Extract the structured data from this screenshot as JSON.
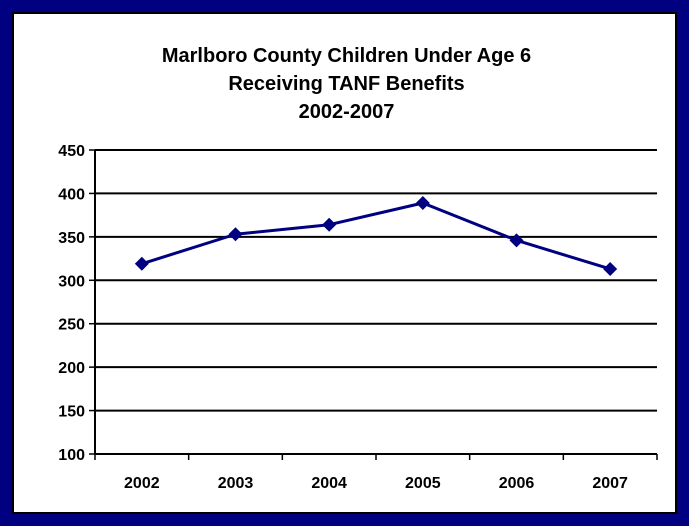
{
  "colors": {
    "frame": "#000080",
    "series": "#000080",
    "grid": "#000000",
    "background": "#ffffff"
  },
  "chart_data": {
    "type": "line",
    "title": [
      "Marlboro County Children Under Age 6",
      "Receiving TANF Benefits",
      "2002-2007"
    ],
    "categories": [
      "2002",
      "2003",
      "2004",
      "2005",
      "2006",
      "2007"
    ],
    "series": [
      {
        "values": [
          319,
          353,
          364,
          389,
          346,
          313
        ]
      }
    ],
    "ylim": [
      100,
      450
    ],
    "yticks": [
      "100",
      "150",
      "200",
      "250",
      "300",
      "350",
      "400",
      "450"
    ],
    "grid": true,
    "legend": "none",
    "marker": "diamond"
  }
}
